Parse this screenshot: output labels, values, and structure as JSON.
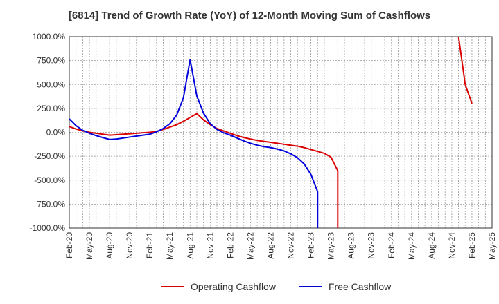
{
  "chart_data": {
    "type": "line",
    "title": "[6814]  Trend of Growth Rate (YoY) of 12-Month Moving Sum of Cashflows",
    "xlabel": "",
    "ylabel": "",
    "ylim": [
      -1000,
      1000
    ],
    "y_ticks": [
      "1000.0%",
      "750.0%",
      "500.0%",
      "250.0%",
      "0.0%",
      "-250.0%",
      "-500.0%",
      "-750.0%",
      "-1000.0%"
    ],
    "y_tick_values": [
      1000,
      750,
      500,
      250,
      0,
      -250,
      -500,
      -750,
      -1000
    ],
    "x_ticks": [
      "Feb-20",
      "May-20",
      "Aug-20",
      "Nov-20",
      "Feb-21",
      "May-21",
      "Aug-21",
      "Nov-21",
      "Feb-22",
      "May-22",
      "Aug-22",
      "Nov-22",
      "Feb-23",
      "May-23",
      "Aug-23",
      "Nov-23",
      "Feb-24",
      "May-24",
      "Aug-24",
      "Nov-24",
      "Feb-25",
      "May-25"
    ],
    "x_range": [
      "2020-02",
      "2025-05"
    ],
    "grid": true,
    "legend_position": "bottom",
    "series": [
      {
        "name": "Operating Cashflow",
        "color": "#dd0000",
        "points": [
          [
            "2020-02",
            60
          ],
          [
            "2020-03",
            35
          ],
          [
            "2020-04",
            15
          ],
          [
            "2020-05",
            0
          ],
          [
            "2020-06",
            -10
          ],
          [
            "2020-07",
            -20
          ],
          [
            "2020-08",
            -30
          ],
          [
            "2020-09",
            -25
          ],
          [
            "2020-10",
            -20
          ],
          [
            "2020-11",
            -15
          ],
          [
            "2020-12",
            -10
          ],
          [
            "2021-01",
            -5
          ],
          [
            "2021-02",
            0
          ],
          [
            "2021-03",
            10
          ],
          [
            "2021-04",
            30
          ],
          [
            "2021-05",
            55
          ],
          [
            "2021-06",
            80
          ],
          [
            "2021-07",
            115
          ],
          [
            "2021-08",
            155
          ],
          [
            "2021-09",
            195
          ],
          [
            "2021-10",
            130
          ],
          [
            "2021-11",
            80
          ],
          [
            "2021-12",
            40
          ],
          [
            "2022-01",
            15
          ],
          [
            "2022-02",
            -10
          ],
          [
            "2022-03",
            -35
          ],
          [
            "2022-04",
            -55
          ],
          [
            "2022-05",
            -70
          ],
          [
            "2022-06",
            -85
          ],
          [
            "2022-07",
            -95
          ],
          [
            "2022-08",
            -105
          ],
          [
            "2022-09",
            -115
          ],
          [
            "2022-10",
            -125
          ],
          [
            "2022-11",
            -135
          ],
          [
            "2022-12",
            -145
          ],
          [
            "2023-01",
            -160
          ],
          [
            "2023-02",
            -180
          ],
          [
            "2023-03",
            -200
          ],
          [
            "2023-04",
            -220
          ],
          [
            "2023-05",
            -260
          ],
          [
            "2023-06",
            -400
          ],
          [
            "2023-06",
            -1000
          ],
          null,
          [
            "2024-12",
            1000
          ],
          [
            "2025-01",
            500
          ],
          [
            "2025-02",
            300
          ]
        ]
      },
      {
        "name": "Free Cashflow",
        "color": "#0000dd",
        "points": [
          [
            "2020-02",
            140
          ],
          [
            "2020-03",
            70
          ],
          [
            "2020-04",
            20
          ],
          [
            "2020-05",
            -10
          ],
          [
            "2020-06",
            -35
          ],
          [
            "2020-07",
            -55
          ],
          [
            "2020-08",
            -75
          ],
          [
            "2020-09",
            -70
          ],
          [
            "2020-10",
            -60
          ],
          [
            "2020-11",
            -50
          ],
          [
            "2020-12",
            -40
          ],
          [
            "2021-01",
            -30
          ],
          [
            "2021-02",
            -20
          ],
          [
            "2021-03",
            5
          ],
          [
            "2021-04",
            40
          ],
          [
            "2021-05",
            90
          ],
          [
            "2021-06",
            180
          ],
          [
            "2021-07",
            360
          ],
          [
            "2021-08",
            760
          ],
          [
            "2021-09",
            380
          ],
          [
            "2021-10",
            200
          ],
          [
            "2021-11",
            90
          ],
          [
            "2021-12",
            30
          ],
          [
            "2022-01",
            -5
          ],
          [
            "2022-02",
            -30
          ],
          [
            "2022-03",
            -60
          ],
          [
            "2022-04",
            -90
          ],
          [
            "2022-05",
            -115
          ],
          [
            "2022-06",
            -135
          ],
          [
            "2022-07",
            -150
          ],
          [
            "2022-08",
            -160
          ],
          [
            "2022-09",
            -175
          ],
          [
            "2022-10",
            -195
          ],
          [
            "2022-11",
            -225
          ],
          [
            "2022-12",
            -265
          ],
          [
            "2023-01",
            -330
          ],
          [
            "2023-02",
            -440
          ],
          [
            "2023-03",
            -620
          ],
          [
            "2023-03",
            -1000
          ]
        ]
      }
    ]
  }
}
